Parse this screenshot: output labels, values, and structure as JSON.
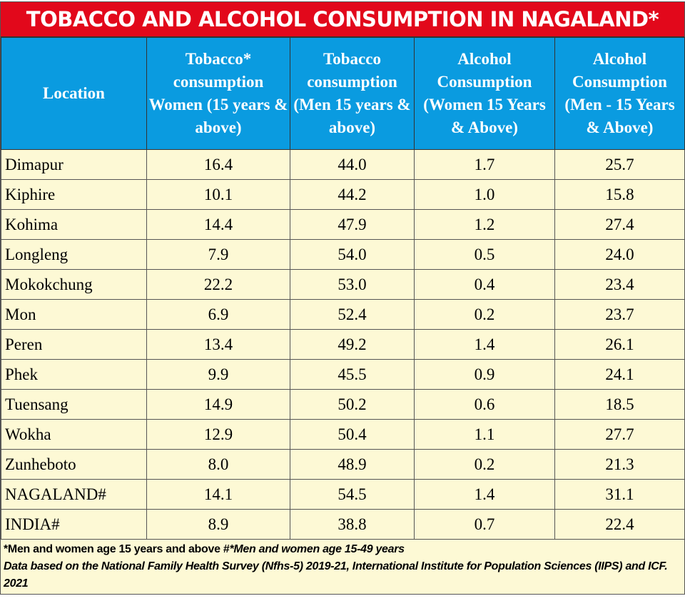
{
  "chart_data": {
    "type": "table",
    "title": "TOBACCO AND ALCOHOL CONSUMPTION IN NAGALAND*",
    "columns": [
      "Location",
      "Tobacco* consumption Women (15 years & above)",
      "Tobacco consumption (Men 15 years & above)",
      "Alcohol Consumption (Women 15 Years & Above)",
      "Alcohol Consumption (Men - 15 Years & Above)"
    ],
    "rows": [
      [
        "Dimapur",
        "16.4",
        "44.0",
        "1.7",
        "25.7"
      ],
      [
        "Kiphire",
        "10.1",
        "44.2",
        "1.0",
        "15.8"
      ],
      [
        "Kohima",
        "14.4",
        "47.9",
        "1.2",
        "27.4"
      ],
      [
        "Longleng",
        "7.9",
        "54.0",
        "0.5",
        "24.0"
      ],
      [
        "Mokokchung",
        "22.2",
        "53.0",
        "0.4",
        "23.4"
      ],
      [
        "Mon",
        "6.9",
        "52.4",
        "0.2",
        "23.7"
      ],
      [
        "Peren",
        "13.4",
        "49.2",
        "1.4",
        "26.1"
      ],
      [
        "Phek",
        "9.9",
        "45.5",
        "0.9",
        "24.1"
      ],
      [
        "Tuensang",
        "14.9",
        "50.2",
        "0.6",
        "18.5"
      ],
      [
        "Wokha",
        "12.9",
        "50.4",
        "1.1",
        "27.7"
      ],
      [
        "Zunheboto",
        "8.0",
        "48.9",
        "0.2",
        "21.3"
      ],
      [
        "NAGALAND#",
        "14.1",
        "54.5",
        "1.4",
        "31.1"
      ],
      [
        "INDIA#",
        "8.9",
        "38.8",
        "0.7",
        "22.4"
      ]
    ],
    "footnote_1a": "*Men and women age 15 years and above #",
    "footnote_1b": "*Men and women age 15-49 years",
    "footnote_2": "Data based on the National Family Health Survey (Nfhs-5) 2019-21, International Institute for Population Sciences (IIPS) and ICF. 2021",
    "colors": {
      "title_bg": "#e2081b",
      "header_bg": "#0a9be0",
      "cell_bg": "#fdf9d5"
    }
  }
}
